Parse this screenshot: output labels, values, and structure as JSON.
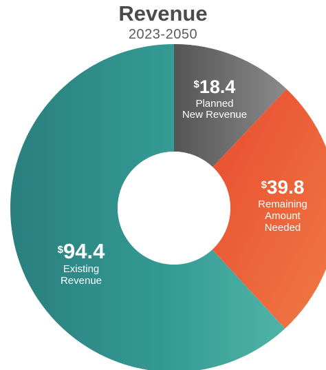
{
  "chart_data": {
    "type": "pie",
    "title": "Revenue",
    "subtitle": "2023-2050",
    "donut": true,
    "slices": [
      {
        "label": "Planned New Revenue",
        "label_lines": [
          "Planned",
          "New Revenue"
        ],
        "value": 18.4,
        "value_text": "18.4",
        "currency": "$",
        "color": "#707070"
      },
      {
        "label": "Remaining Amount Needed",
        "label_lines": [
          "Remaining",
          "Amount",
          "Needed"
        ],
        "value": 39.8,
        "value_text": "39.8",
        "currency": "$",
        "color": "#E84C2F"
      },
      {
        "label": "Existing Revenue",
        "label_lines": [
          "Existing",
          "Revenue"
        ],
        "value": 94.4,
        "value_text": "94.4",
        "currency": "$",
        "color": "#2F8F8D"
      }
    ]
  }
}
